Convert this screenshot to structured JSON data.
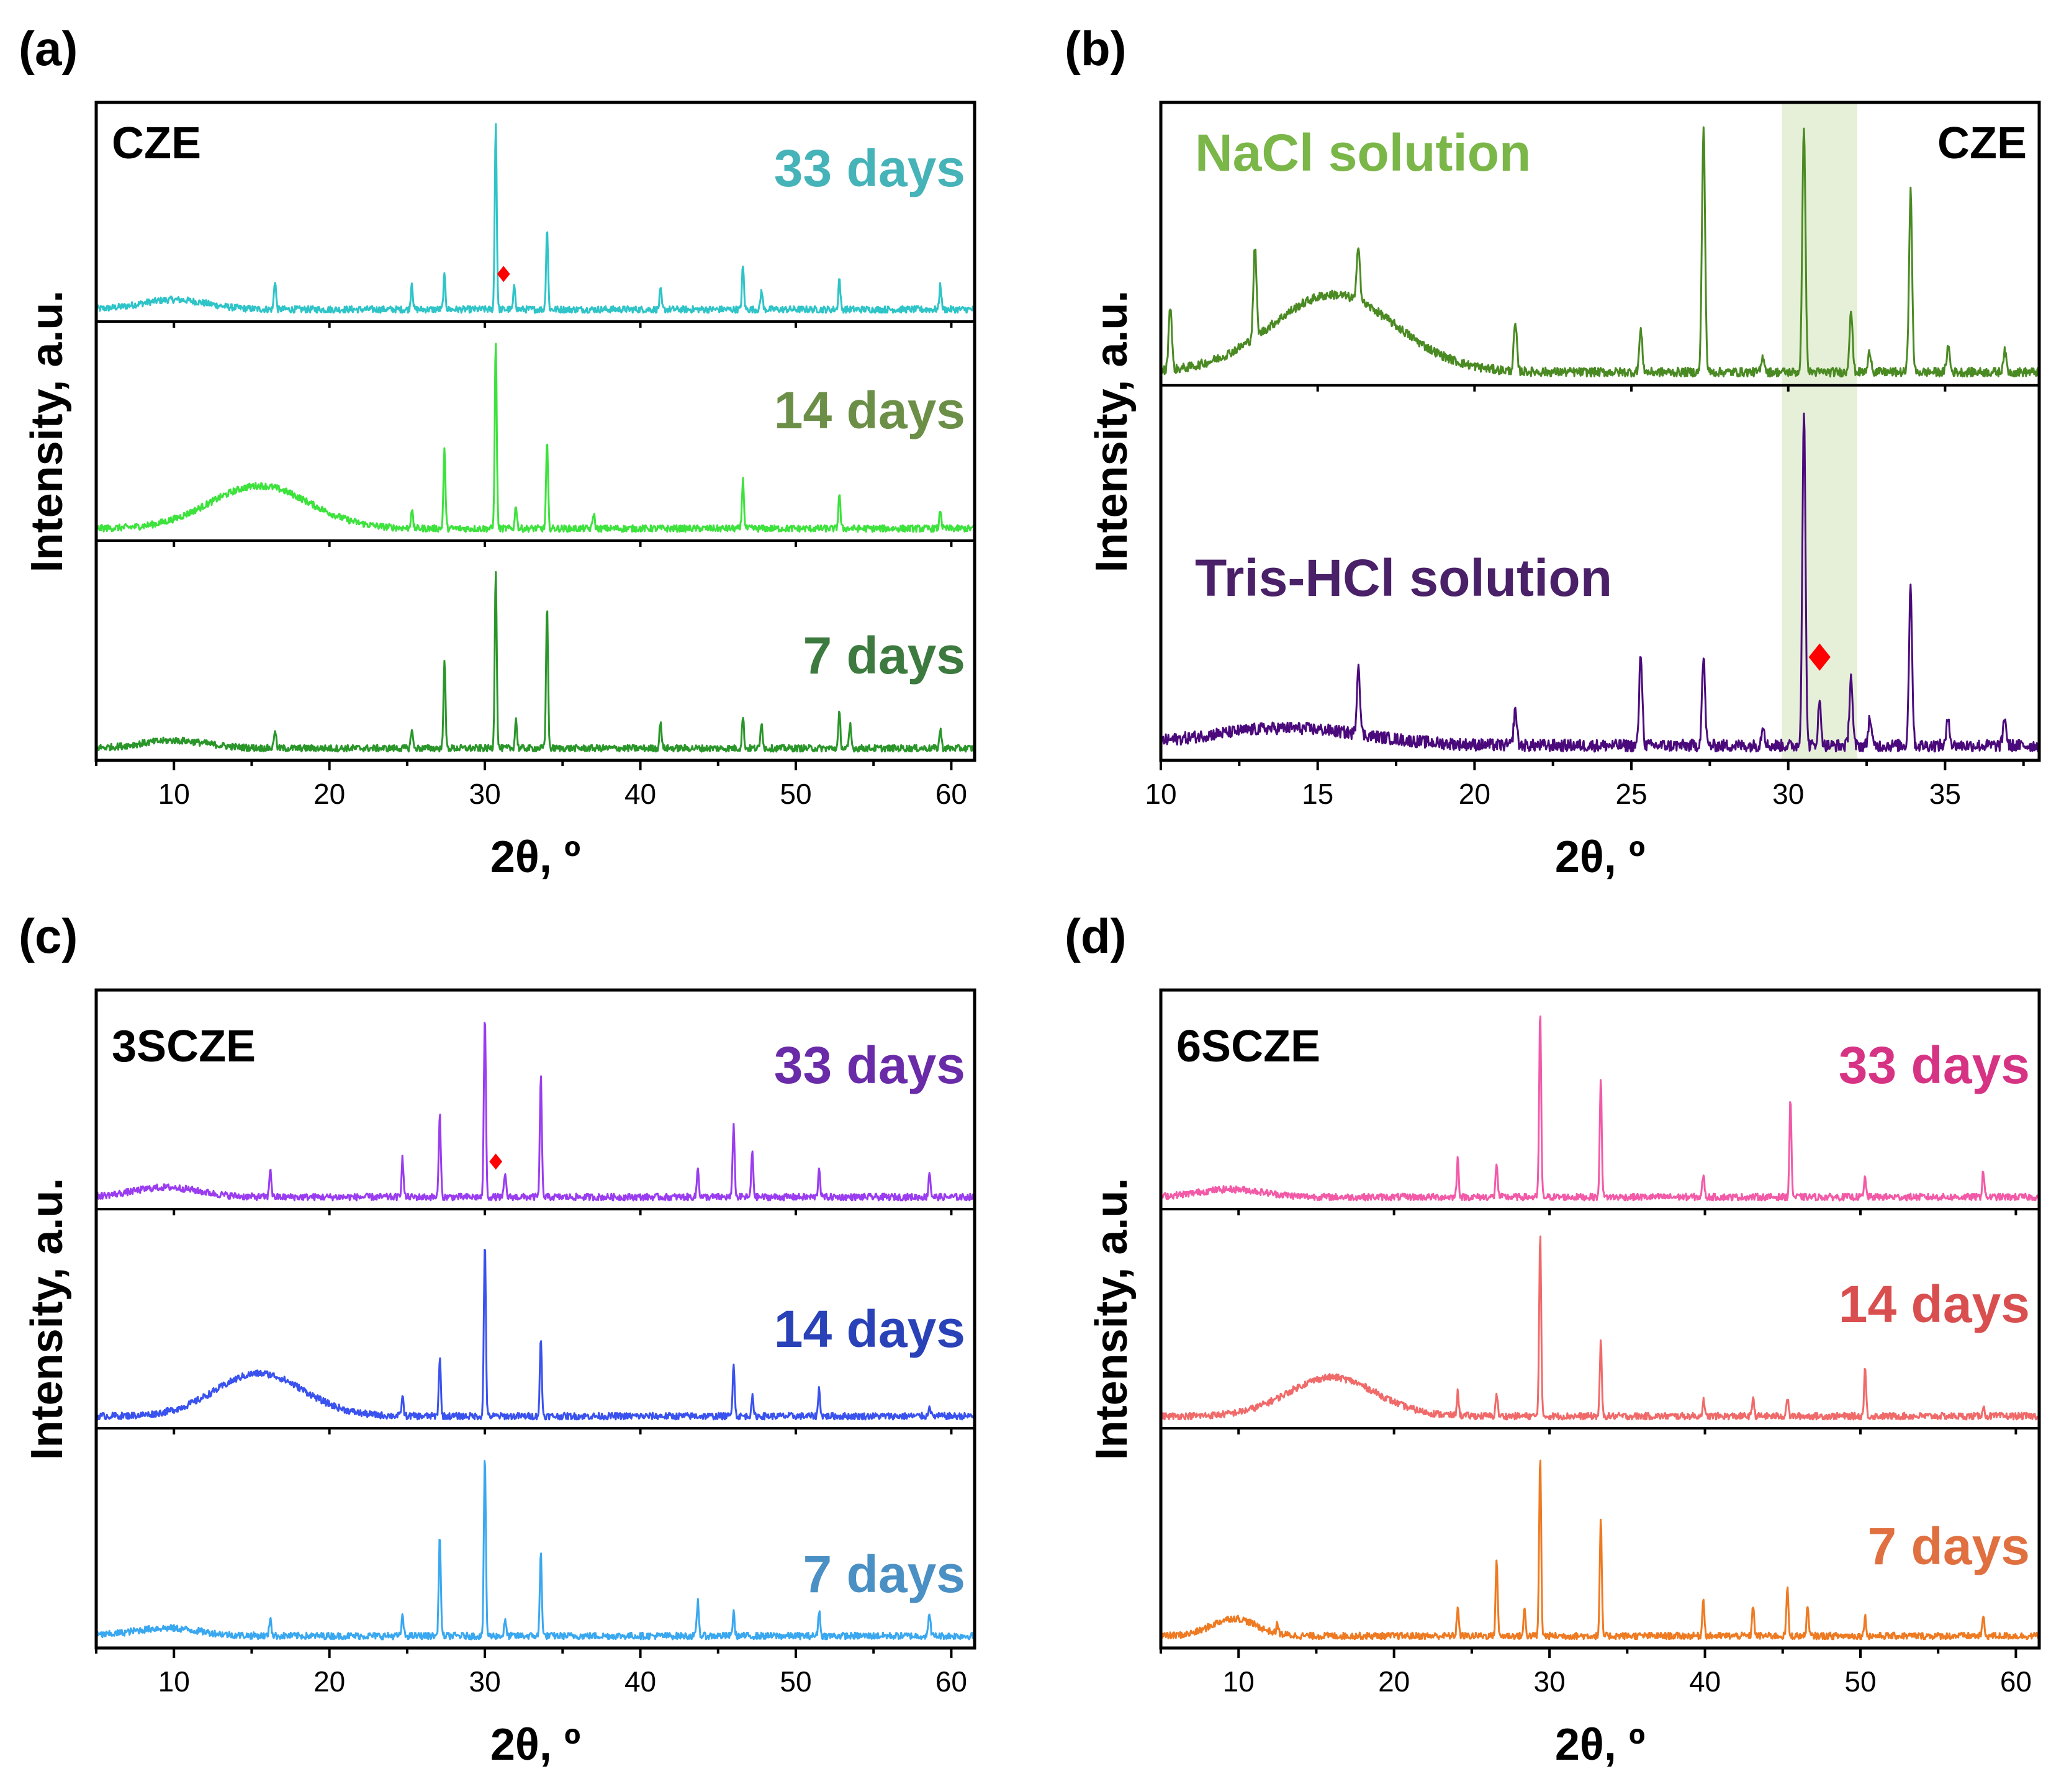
{
  "figure": {
    "colors": {
      "marker": "#ff0000",
      "highlight_band": "#e6efd8"
    }
  },
  "chart_data": [
    {
      "panel": "(a)",
      "type": "line",
      "stacked": true,
      "sample": "CZE",
      "xlabel": "2θ, º",
      "ylabel": "Intensity, a.u.",
      "xlim": [
        5,
        61.5
      ],
      "xticks": [
        10,
        20,
        30,
        40,
        50,
        60
      ],
      "marker": {
        "shape": "diamond",
        "series": "33 days",
        "x": 31.2,
        "color": "#ff0000"
      },
      "series": [
        {
          "name": "33 days",
          "color": "#2ec4c8",
          "label_color": "#45b3b8",
          "hump": {
            "center": 10,
            "width": 3,
            "height": 0.05
          },
          "peaks": [
            [
              16.5,
              0.15
            ],
            [
              25.3,
              0.14
            ],
            [
              27.4,
              0.17
            ],
            [
              30.7,
              0.96
            ],
            [
              31.9,
              0.12
            ],
            [
              34.0,
              0.42
            ],
            [
              41.3,
              0.1
            ],
            [
              46.6,
              0.22
            ],
            [
              47.8,
              0.1
            ],
            [
              52.8,
              0.16
            ],
            [
              59.3,
              0.13
            ]
          ]
        },
        {
          "name": "14 days",
          "color": "#3de23d",
          "label_color": "#6c8f48",
          "hump": {
            "center": 15.5,
            "width": 4.5,
            "height": 0.22
          },
          "peaks": [
            [
              25.3,
              0.1
            ],
            [
              27.4,
              0.4
            ],
            [
              30.7,
              0.96
            ],
            [
              32.0,
              0.12
            ],
            [
              34.0,
              0.44
            ],
            [
              37.0,
              0.08
            ],
            [
              46.6,
              0.25
            ],
            [
              52.8,
              0.18
            ],
            [
              59.3,
              0.1
            ]
          ]
        },
        {
          "name": "7 days",
          "color": "#2a962a",
          "label_color": "#3d7a3f",
          "hump": {
            "center": 10,
            "width": 3,
            "height": 0.04
          },
          "peaks": [
            [
              16.5,
              0.1
            ],
            [
              25.3,
              0.1
            ],
            [
              27.4,
              0.45
            ],
            [
              30.7,
              0.92
            ],
            [
              32.0,
              0.15
            ],
            [
              34.0,
              0.74
            ],
            [
              41.3,
              0.14
            ],
            [
              46.6,
              0.16
            ],
            [
              47.8,
              0.14
            ],
            [
              52.8,
              0.18
            ],
            [
              53.5,
              0.12
            ],
            [
              59.3,
              0.1
            ]
          ]
        }
      ]
    },
    {
      "panel": "(b)",
      "type": "line",
      "stacked": true,
      "sample": "CZE",
      "xlabel": "2θ, º",
      "ylabel": "Intensity, a.u.",
      "xlim": [
        10,
        38
      ],
      "xticks": [
        10,
        15,
        20,
        25,
        30,
        35
      ],
      "highlight": {
        "x": [
          29.8,
          32.2
        ],
        "color": "#e6efd8"
      },
      "marker": {
        "shape": "diamond",
        "series": "Tris-HCl solution",
        "x": 31.0,
        "color": "#ff0000"
      },
      "series": [
        {
          "name": "NaCl solution",
          "color": "#4a8a22",
          "label_color": "#7ab648",
          "hump": {
            "center": 15.5,
            "width": 2.8,
            "height": 0.3
          },
          "peaks": [
            [
              10.3,
              0.25
            ],
            [
              13.0,
              0.35
            ],
            [
              16.3,
              0.22
            ],
            [
              21.3,
              0.18
            ],
            [
              25.3,
              0.16
            ],
            [
              27.3,
              0.95
            ],
            [
              29.2,
              0.06
            ],
            [
              30.5,
              0.96
            ],
            [
              32.0,
              0.24
            ],
            [
              32.6,
              0.08
            ],
            [
              33.9,
              0.7
            ],
            [
              35.1,
              0.1
            ],
            [
              36.9,
              0.08
            ]
          ]
        },
        {
          "name": "Tris-HCl solution",
          "color": "#4b0a7c",
          "label_color": "#4a2068",
          "hump": {
            "center": 14,
            "width": 3.5,
            "height": 0.05
          },
          "peaks": [
            [
              16.3,
              0.2
            ],
            [
              21.3,
              0.1
            ],
            [
              25.3,
              0.26
            ],
            [
              27.3,
              0.25
            ],
            [
              29.2,
              0.06
            ],
            [
              30.5,
              0.96
            ],
            [
              31.0,
              0.12
            ],
            [
              32.0,
              0.2
            ],
            [
              32.6,
              0.08
            ],
            [
              33.9,
              0.46
            ],
            [
              35.1,
              0.08
            ],
            [
              36.9,
              0.08
            ]
          ]
        }
      ]
    },
    {
      "panel": "(c)",
      "type": "line",
      "stacked": true,
      "sample": "3SCZE",
      "xlabel": "2θ, º",
      "ylabel": "Intensity, a.u.",
      "xlim": [
        5,
        61.5
      ],
      "xticks": [
        10,
        20,
        30,
        40,
        50,
        60
      ],
      "marker": {
        "shape": "diamond",
        "series": "33 days",
        "x": 30.7,
        "color": "#ff0000"
      },
      "series": [
        {
          "name": "33 days",
          "color": "#9a3cf0",
          "label_color": "#6a2ba8",
          "hump": {
            "center": 9.5,
            "width": 3,
            "height": 0.05
          },
          "peaks": [
            [
              16.2,
              0.15
            ],
            [
              24.7,
              0.2
            ],
            [
              27.1,
              0.42
            ],
            [
              30.0,
              0.95
            ],
            [
              31.3,
              0.12
            ],
            [
              33.6,
              0.62
            ],
            [
              43.7,
              0.15
            ],
            [
              46.0,
              0.38
            ],
            [
              47.2,
              0.24
            ],
            [
              51.5,
              0.15
            ],
            [
              58.6,
              0.13
            ]
          ]
        },
        {
          "name": "14 days",
          "color": "#3a52ee",
          "label_color": "#2a42b8",
          "hump": {
            "center": 15.5,
            "width": 4,
            "height": 0.22
          },
          "peaks": [
            [
              24.7,
              0.1
            ],
            [
              27.1,
              0.3
            ],
            [
              30.0,
              0.9
            ],
            [
              33.6,
              0.4
            ],
            [
              46.0,
              0.28
            ],
            [
              47.2,
              0.1
            ],
            [
              51.5,
              0.14
            ],
            [
              58.6,
              0.06
            ]
          ]
        },
        {
          "name": "7 days",
          "color": "#3aa8f0",
          "label_color": "#4a90c4",
          "hump": {
            "center": 9.5,
            "width": 3,
            "height": 0.04
          },
          "peaks": [
            [
              16.2,
              0.1
            ],
            [
              24.7,
              0.1
            ],
            [
              27.1,
              0.52
            ],
            [
              30.0,
              0.92
            ],
            [
              31.3,
              0.08
            ],
            [
              33.6,
              0.43
            ],
            [
              43.7,
              0.18
            ],
            [
              46.0,
              0.12
            ],
            [
              51.5,
              0.13
            ],
            [
              58.6,
              0.12
            ]
          ]
        }
      ]
    },
    {
      "panel": "(d)",
      "type": "line",
      "stacked": true,
      "sample": "6SCZE",
      "xlabel": "2θ, º",
      "ylabel": "Intensity, a.u.",
      "xlim": [
        5,
        61.5
      ],
      "xticks": [
        10,
        20,
        30,
        40,
        50,
        60
      ],
      "series": [
        {
          "name": "33 days",
          "color": "#f25aa8",
          "label_color": "#d63384",
          "hump": {
            "center": 9.5,
            "width": 3,
            "height": 0.04
          },
          "peaks": [
            [
              24.1,
              0.2
            ],
            [
              26.6,
              0.18
            ],
            [
              29.4,
              0.96
            ],
            [
              33.3,
              0.62
            ],
            [
              39.9,
              0.12
            ],
            [
              45.5,
              0.5
            ],
            [
              50.3,
              0.1
            ],
            [
              57.9,
              0.14
            ]
          ]
        },
        {
          "name": "14 days",
          "color": "#f06a6a",
          "label_color": "#d94f4f",
          "hump": {
            "center": 16,
            "width": 4,
            "height": 0.2
          },
          "peaks": [
            [
              24.1,
              0.12
            ],
            [
              26.6,
              0.12
            ],
            [
              29.4,
              0.95
            ],
            [
              33.3,
              0.38
            ],
            [
              39.9,
              0.08
            ],
            [
              43.1,
              0.1
            ],
            [
              45.3,
              0.1
            ],
            [
              50.3,
              0.25
            ],
            [
              57.9,
              0.05
            ]
          ]
        },
        {
          "name": "7 days",
          "color": "#ee7a22",
          "label_color": "#e07040",
          "hump": {
            "center": 9.7,
            "width": 2,
            "height": 0.09
          },
          "peaks": [
            [
              12.5,
              0.05
            ],
            [
              24.1,
              0.15
            ],
            [
              26.6,
              0.4
            ],
            [
              28.4,
              0.14
            ],
            [
              29.4,
              0.93
            ],
            [
              33.3,
              0.6
            ],
            [
              39.9,
              0.2
            ],
            [
              43.1,
              0.16
            ],
            [
              45.3,
              0.25
            ],
            [
              46.6,
              0.15
            ],
            [
              50.3,
              0.1
            ],
            [
              57.9,
              0.1
            ]
          ]
        }
      ]
    }
  ]
}
